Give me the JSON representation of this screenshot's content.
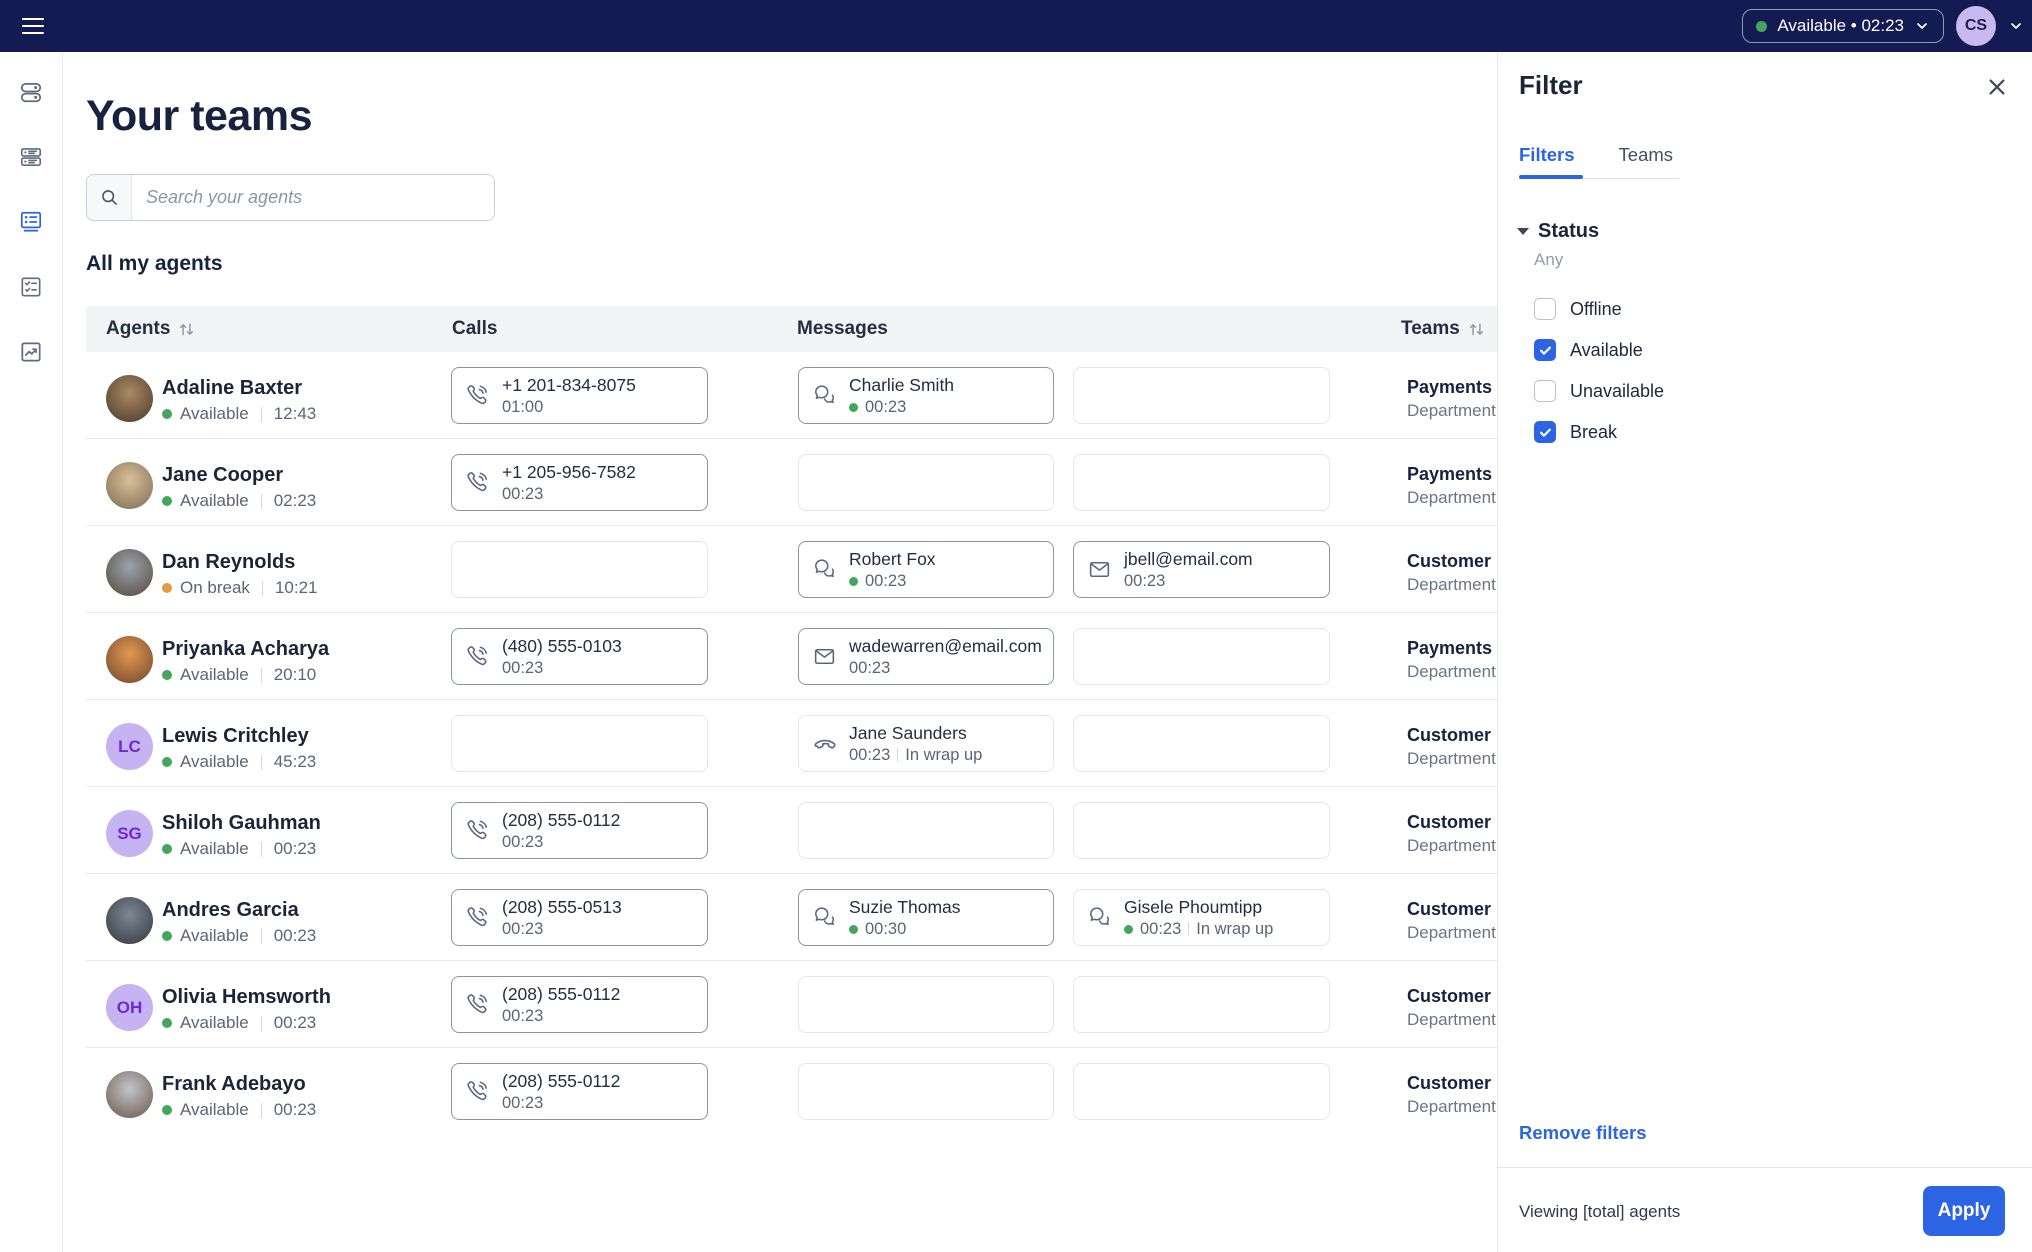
{
  "colors": {
    "topbar": "#141b53",
    "accent": "#2d64e4",
    "green": "#43a65c",
    "break": "#e09b43",
    "avatarPurple": "#c9b9f1",
    "initialsBg": "#c5b3f2",
    "initialsText": "#6d28d9"
  },
  "topbar": {
    "status_label": "Available • 02:23",
    "avatar_initials": "CS"
  },
  "sidebar": {
    "active_index": 2,
    "items": [
      {
        "icon": "toggles-icon"
      },
      {
        "icon": "queues-icon"
      },
      {
        "icon": "agents-icon",
        "active": true
      },
      {
        "icon": "tasks-icon"
      },
      {
        "icon": "reports-icon"
      }
    ]
  },
  "page": {
    "title": "Your teams",
    "search_placeholder": "Search your agents",
    "section_title": "All my agents"
  },
  "table": {
    "headers": {
      "agents": "Agents",
      "calls": "Calls",
      "messages": "Messages",
      "teams": "Teams"
    },
    "rows": [
      {
        "name": "Adaline Baxter",
        "avatar": {
          "type": "photo",
          "colors": [
            "#a98a63",
            "#4a382c"
          ]
        },
        "status": {
          "label": "Available",
          "type": "available",
          "time": "12:43"
        },
        "call": {
          "icon": "phone-icon",
          "title": "+1 201-834-8075",
          "duration": "01:00",
          "active": true
        },
        "messages": [
          {
            "icon": "chat-icon",
            "title": "Charlie Smith",
            "dot": true,
            "duration": "00:23",
            "active": true
          },
          null
        ],
        "team": {
          "name": "Payments",
          "sub": "Department"
        }
      },
      {
        "name": "Jane Cooper",
        "avatar": {
          "type": "photo",
          "colors": [
            "#d8c09a",
            "#7d6a52"
          ]
        },
        "status": {
          "label": "Available",
          "type": "available",
          "time": "02:23"
        },
        "call": {
          "icon": "phone-icon",
          "title": "+1 205-956-7582",
          "duration": "00:23",
          "active": true
        },
        "messages": [
          null,
          null
        ],
        "team": {
          "name": "Payments",
          "sub": "Department"
        }
      },
      {
        "name": "Dan Reynolds",
        "avatar": {
          "type": "photo",
          "colors": [
            "#9aa3ab",
            "#54473c"
          ]
        },
        "status": {
          "label": "On break",
          "type": "break",
          "time": "10:21"
        },
        "call": null,
        "messages": [
          {
            "icon": "chat-icon",
            "title": "Robert Fox",
            "dot": true,
            "duration": "00:23",
            "active": true
          },
          {
            "icon": "email-icon",
            "title": "jbell@email.com",
            "dot": false,
            "duration": "00:23",
            "active": true
          }
        ],
        "team": {
          "name": "Customer",
          "sub": "Department"
        }
      },
      {
        "name": "Priyanka Acharya",
        "avatar": {
          "type": "photo",
          "colors": [
            "#e3984f",
            "#6e4630"
          ]
        },
        "status": {
          "label": "Available",
          "type": "available",
          "time": "20:10"
        },
        "call": {
          "icon": "phone-icon",
          "title": "(480) 555-0103",
          "duration": "00:23",
          "active": true
        },
        "messages": [
          {
            "icon": "email-icon",
            "title": "wadewarren@email.com",
            "dot": false,
            "duration": "00:23",
            "active": true
          },
          null
        ],
        "team": {
          "name": "Payments",
          "sub": "Department"
        }
      },
      {
        "name": "Lewis Critchley",
        "avatar": {
          "type": "initials",
          "initials": "LC"
        },
        "status": {
          "label": "Available",
          "type": "available",
          "time": "45:23"
        },
        "call": null,
        "messages": [
          {
            "icon": "handset-icon",
            "title": "Jane Saunders",
            "dot": false,
            "duration": "00:23",
            "extra": "In wrap up",
            "active": false
          },
          null
        ],
        "team": {
          "name": "Customer",
          "sub": "Department"
        }
      },
      {
        "name": "Shiloh Gauhman",
        "avatar": {
          "type": "initials",
          "initials": "SG"
        },
        "status": {
          "label": "Available",
          "type": "available",
          "time": "00:23"
        },
        "call": {
          "icon": "phone-icon",
          "title": "(208) 555-0112",
          "duration": "00:23",
          "active": true
        },
        "messages": [
          null,
          null
        ],
        "team": {
          "name": "Customer",
          "sub": "Department"
        }
      },
      {
        "name": "Andres Garcia",
        "avatar": {
          "type": "photo",
          "colors": [
            "#7e8893",
            "#303840"
          ]
        },
        "status": {
          "label": "Available",
          "type": "available",
          "time": "00:23"
        },
        "call": {
          "icon": "phone-icon",
          "title": "(208) 555-0513",
          "duration": "00:23",
          "active": true
        },
        "messages": [
          {
            "icon": "chat-icon",
            "title": "Suzie Thomas",
            "dot": true,
            "duration": "00:30",
            "active": true
          },
          {
            "icon": "chat-icon",
            "title": "Gisele Phoumtipp",
            "dot": true,
            "duration": "00:23",
            "extra": "In wrap up",
            "active": false
          }
        ],
        "team": {
          "name": "Customer",
          "sub": "Department"
        }
      },
      {
        "name": "Olivia Hemsworth",
        "avatar": {
          "type": "initials",
          "initials": "OH"
        },
        "status": {
          "label": "Available",
          "type": "available",
          "time": "00:23"
        },
        "call": {
          "icon": "phone-icon",
          "title": "(208) 555-0112",
          "duration": "00:23",
          "active": true
        },
        "messages": [
          null,
          null
        ],
        "team": {
          "name": "Customer",
          "sub": "Department"
        }
      },
      {
        "name": "Frank Adebayo",
        "avatar": {
          "type": "photo",
          "colors": [
            "#c2c6ca",
            "#6b554a"
          ]
        },
        "status": {
          "label": "Available",
          "type": "available",
          "time": "00:23"
        },
        "call": {
          "icon": "phone-icon",
          "title": "(208) 555-0112",
          "duration": "00:23",
          "active": true
        },
        "messages": [
          null,
          null
        ],
        "team": {
          "name": "Customer",
          "sub": "Department"
        }
      }
    ]
  },
  "filter_panel": {
    "title": "Filter",
    "tabs": [
      {
        "label": "Filters",
        "active": true
      },
      {
        "label": "Teams",
        "active": false
      }
    ],
    "status": {
      "label": "Status",
      "value": "Any",
      "options": [
        {
          "label": "Offline",
          "checked": false
        },
        {
          "label": "Available",
          "checked": true
        },
        {
          "label": "Unavailable",
          "checked": false
        },
        {
          "label": "Break",
          "checked": true
        }
      ]
    },
    "remove_label": "Remove filters",
    "viewing_text": "Viewing [total] agents",
    "apply_label": "Apply"
  }
}
